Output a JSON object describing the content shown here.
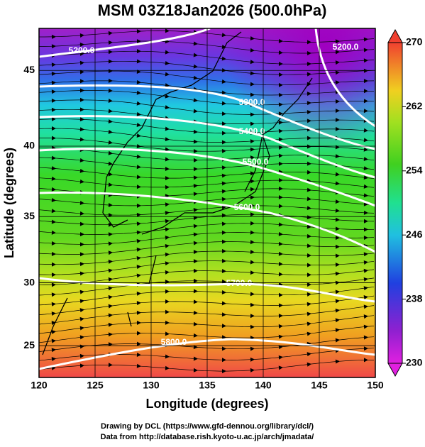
{
  "title": "MSM 03Z18Jan2026 (500.0hPa)",
  "map": {
    "xlabel": "Longitude (degrees)",
    "ylabel": "Latitude  (degrees)",
    "xlim": [
      120,
      150
    ],
    "ylim": [
      22.4,
      47.6
    ],
    "xticks": [
      120,
      125,
      130,
      135,
      140,
      145,
      150
    ],
    "yticks": [
      25,
      30,
      35,
      40,
      45
    ],
    "contour_labels": [
      "5200.0",
      "5200.0",
      "5300.0",
      "5400.0",
      "5500.0",
      "5600.0",
      "5700.0",
      "5800.0"
    ]
  },
  "colorbar": {
    "lim": [
      230,
      270
    ],
    "ticks": [
      230,
      238,
      246,
      254,
      262,
      270
    ]
  },
  "footer": [
    "Drawing by DCL (https://www.gfd-dennou.org/library/dcl/)",
    "Data from http://database.rish.kyoto-u.ac.jp/arch/jmadata/"
  ]
}
